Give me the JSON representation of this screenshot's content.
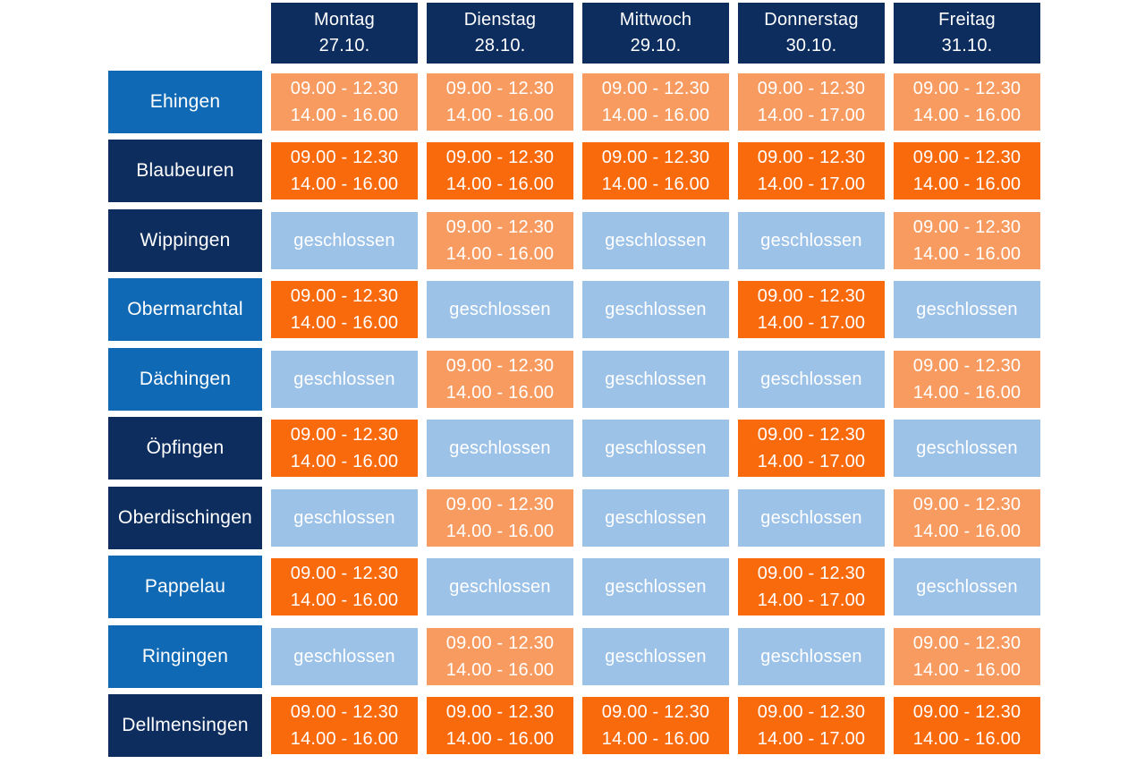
{
  "chart_data": {
    "type": "table",
    "title": "",
    "closed_label": "geschlossen",
    "columns": [
      {
        "day": "Montag",
        "date": "27.10."
      },
      {
        "day": "Dienstag",
        "date": "28.10."
      },
      {
        "day": "Mittwoch",
        "date": "29.10."
      },
      {
        "day": "Donnerstag",
        "date": "30.10."
      },
      {
        "day": "Freitag",
        "date": "31.10."
      }
    ],
    "rows": [
      {
        "location": "Ehingen",
        "header_shade": "medium",
        "cells": [
          {
            "variant": "open-light",
            "text": "09.00 - 12.30\n14.00 - 16.00"
          },
          {
            "variant": "open-light",
            "text": "09.00 - 12.30\n14.00 - 16.00"
          },
          {
            "variant": "open-light",
            "text": "09.00 - 12.30\n14.00 - 16.00"
          },
          {
            "variant": "open-light",
            "text": "09.00 - 12.30\n14.00 - 17.00"
          },
          {
            "variant": "open-light",
            "text": "09.00 - 12.30\n14.00 - 16.00"
          }
        ]
      },
      {
        "location": "Blaubeuren",
        "header_shade": "dark",
        "cells": [
          {
            "variant": "open-dark",
            "text": "09.00 - 12.30\n14.00 - 16.00"
          },
          {
            "variant": "open-dark",
            "text": "09.00 - 12.30\n14.00 - 16.00"
          },
          {
            "variant": "open-dark",
            "text": "09.00 - 12.30\n14.00 - 16.00"
          },
          {
            "variant": "open-dark",
            "text": "09.00 - 12.30\n14.00 - 17.00"
          },
          {
            "variant": "open-dark",
            "text": "09.00 - 12.30\n14.00 - 16.00"
          }
        ]
      },
      {
        "location": "Wippingen",
        "header_shade": "dark",
        "cells": [
          {
            "variant": "closed",
            "text": "geschlossen"
          },
          {
            "variant": "open-light",
            "text": "09.00 - 12.30\n14.00 - 16.00"
          },
          {
            "variant": "closed",
            "text": "geschlossen"
          },
          {
            "variant": "closed",
            "text": "geschlossen"
          },
          {
            "variant": "open-light",
            "text": "09.00 - 12.30\n14.00 - 16.00"
          }
        ]
      },
      {
        "location": "Obermarchtal",
        "header_shade": "medium",
        "cells": [
          {
            "variant": "open-dark",
            "text": "09.00 - 12.30\n14.00 - 16.00"
          },
          {
            "variant": "closed",
            "text": "geschlossen"
          },
          {
            "variant": "closed",
            "text": "geschlossen"
          },
          {
            "variant": "open-dark",
            "text": "09.00 - 12.30\n14.00 - 17.00"
          },
          {
            "variant": "closed",
            "text": "geschlossen"
          }
        ]
      },
      {
        "location": "Dächingen",
        "header_shade": "medium",
        "cells": [
          {
            "variant": "closed",
            "text": "geschlossen"
          },
          {
            "variant": "open-light",
            "text": "09.00 - 12.30\n14.00 - 16.00"
          },
          {
            "variant": "closed",
            "text": "geschlossen"
          },
          {
            "variant": "closed",
            "text": "geschlossen"
          },
          {
            "variant": "open-light",
            "text": "09.00 - 12.30\n14.00 - 16.00"
          }
        ]
      },
      {
        "location": "Öpfingen",
        "header_shade": "dark",
        "cells": [
          {
            "variant": "open-dark",
            "text": "09.00 - 12.30\n14.00 - 16.00"
          },
          {
            "variant": "closed",
            "text": "geschlossen"
          },
          {
            "variant": "closed",
            "text": "geschlossen"
          },
          {
            "variant": "open-dark",
            "text": "09.00 - 12.30\n14.00 - 17.00"
          },
          {
            "variant": "closed",
            "text": "geschlossen"
          }
        ]
      },
      {
        "location": "Oberdischingen",
        "header_shade": "dark",
        "cells": [
          {
            "variant": "closed",
            "text": "geschlossen"
          },
          {
            "variant": "open-light",
            "text": "09.00 - 12.30\n14.00 - 16.00"
          },
          {
            "variant": "closed",
            "text": "geschlossen"
          },
          {
            "variant": "closed",
            "text": "geschlossen"
          },
          {
            "variant": "open-light",
            "text": "09.00 - 12.30\n14.00 - 16.00"
          }
        ]
      },
      {
        "location": "Pappelau",
        "header_shade": "medium",
        "cells": [
          {
            "variant": "open-dark",
            "text": "09.00 - 12.30\n14.00 - 16.00"
          },
          {
            "variant": "closed",
            "text": "geschlossen"
          },
          {
            "variant": "closed",
            "text": "geschlossen"
          },
          {
            "variant": "open-dark",
            "text": "09.00 - 12.30\n14.00 - 17.00"
          },
          {
            "variant": "closed",
            "text": "geschlossen"
          }
        ]
      },
      {
        "location": "Ringingen",
        "header_shade": "medium",
        "cells": [
          {
            "variant": "closed",
            "text": "geschlossen"
          },
          {
            "variant": "open-light",
            "text": "09.00 - 12.30\n14.00 - 16.00"
          },
          {
            "variant": "closed",
            "text": "geschlossen"
          },
          {
            "variant": "closed",
            "text": "geschlossen"
          },
          {
            "variant": "open-light",
            "text": "09.00 - 12.30\n14.00 - 16.00"
          }
        ]
      },
      {
        "location": "Dellmensingen",
        "header_shade": "dark",
        "cells": [
          {
            "variant": "open-dark",
            "text": "09.00 - 12.30\n14.00 - 16.00"
          },
          {
            "variant": "open-dark",
            "text": "09.00 - 12.30\n14.00 - 16.00"
          },
          {
            "variant": "open-dark",
            "text": "09.00 - 12.30\n14.00 - 16.00"
          },
          {
            "variant": "open-dark",
            "text": "09.00 - 12.30\n14.00 - 17.00"
          },
          {
            "variant": "open-dark",
            "text": "09.00 - 12.30\n14.00 - 16.00"
          }
        ]
      }
    ]
  },
  "colors": {
    "header_navy": "#0d2d5e",
    "header_blue": "#1069b4",
    "open_dark_orange": "#f96a0d",
    "open_light_orange": "#f89b60",
    "closed_light_blue": "#9dc2e8",
    "tile_text": "#ffffff",
    "background": "#ffffff"
  }
}
